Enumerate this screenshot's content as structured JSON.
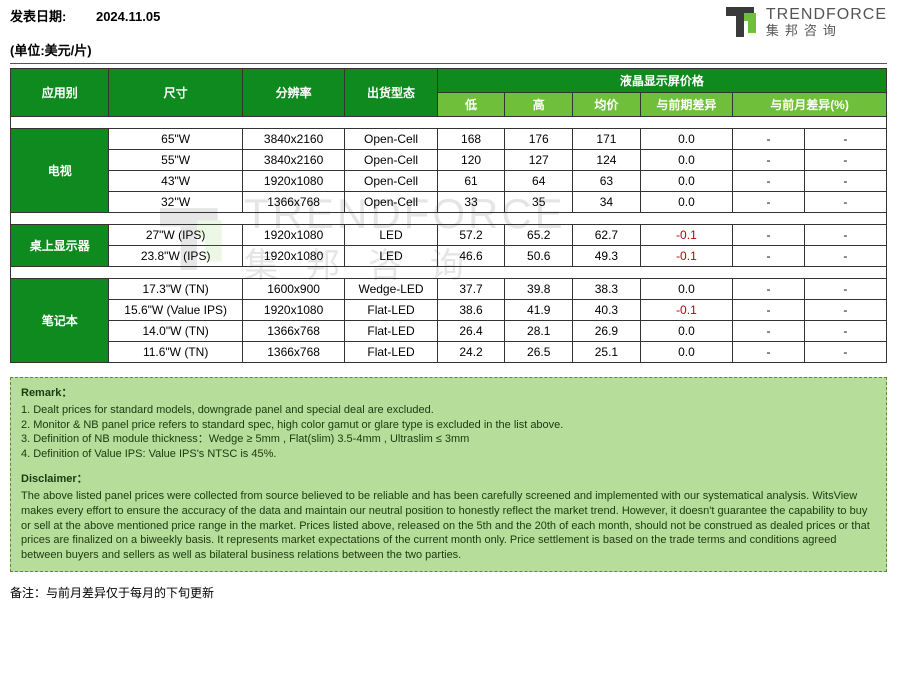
{
  "header": {
    "date_label": "发表日期:",
    "date_value": "2024.11.05",
    "unit_line": "(单位:美元/片)",
    "logo_en": "TRENDFORCE",
    "logo_cn": "集邦咨询"
  },
  "colors": {
    "header_green": "#0f8a1f",
    "sub_green": "#6fbf3a",
    "remark_bg": "#b7dd9a",
    "remark_border": "#5a8a3a",
    "negative": "#c00000",
    "border": "#333333"
  },
  "columns": {
    "app": "应用别",
    "size": "尺寸",
    "res": "分辨率",
    "ship": "出货型态",
    "price_group": "液晶显示屏价格",
    "low": "低",
    "high": "高",
    "avg": "均价",
    "diff_prev": "与前期差异",
    "diff_month": "与前月差异(%)"
  },
  "sections": [
    {
      "category": "电视",
      "rows": [
        {
          "size": "65\"W",
          "res": "3840x2160",
          "ship": "Open-Cell",
          "low": "168",
          "high": "176",
          "avg": "171",
          "d1": "0.0",
          "d1_neg": false,
          "d2a": "-",
          "d2b": "-"
        },
        {
          "size": "55\"W",
          "res": "3840x2160",
          "ship": "Open-Cell",
          "low": "120",
          "high": "127",
          "avg": "124",
          "d1": "0.0",
          "d1_neg": false,
          "d2a": "-",
          "d2b": "-"
        },
        {
          "size": "43\"W",
          "res": "1920x1080",
          "ship": "Open-Cell",
          "low": "61",
          "high": "64",
          "avg": "63",
          "d1": "0.0",
          "d1_neg": false,
          "d2a": "-",
          "d2b": "-"
        },
        {
          "size": "32''W",
          "res": "1366x768",
          "ship": "Open-Cell",
          "low": "33",
          "high": "35",
          "avg": "34",
          "d1": "0.0",
          "d1_neg": false,
          "d2a": "-",
          "d2b": "-"
        }
      ]
    },
    {
      "category": "桌上显示器",
      "rows": [
        {
          "size": "27\"W (IPS)",
          "res": "1920x1080",
          "ship": "LED",
          "low": "57.2",
          "high": "65.2",
          "avg": "62.7",
          "d1": "-0.1",
          "d1_neg": true,
          "d2a": "-",
          "d2b": "-"
        },
        {
          "size": "23.8\"W (IPS)",
          "res": "1920x1080",
          "ship": "LED",
          "low": "46.6",
          "high": "50.6",
          "avg": "49.3",
          "d1": "-0.1",
          "d1_neg": true,
          "d2a": "-",
          "d2b": "-"
        }
      ]
    },
    {
      "category": "笔记本",
      "rows": [
        {
          "size": "17.3\"W (TN)",
          "res": "1600x900",
          "ship": "Wedge-LED",
          "low": "37.7",
          "high": "39.8",
          "avg": "38.3",
          "d1": "0.0",
          "d1_neg": false,
          "d2a": "-",
          "d2b": "-"
        },
        {
          "size": "15.6\"W (Value IPS)",
          "res": "1920x1080",
          "ship": "Flat-LED",
          "low": "38.6",
          "high": "41.9",
          "avg": "40.3",
          "d1": "-0.1",
          "d1_neg": true,
          "d2a": "-",
          "d2b": "-"
        },
        {
          "size": "14.0\"W (TN)",
          "res": "1366x768",
          "ship": "Flat-LED",
          "low": "26.4",
          "high": "28.1",
          "avg": "26.9",
          "d1": "0.0",
          "d1_neg": false,
          "d2a": "-",
          "d2b": "-"
        },
        {
          "size": "11.6\"W (TN)",
          "res": "1366x768",
          "ship": "Flat-LED",
          "low": "24.2",
          "high": "26.5",
          "avg": "25.1",
          "d1": "0.0",
          "d1_neg": false,
          "d2a": "-",
          "d2b": "-"
        }
      ]
    }
  ],
  "remark": {
    "title": "Remark：",
    "lines": [
      "1. Dealt prices for standard models, downgrade panel and special deal are excluded.",
      "2. Monitor & NB panel price refers to standard spec, high color gamut or glare type is excluded in the list above.",
      "3. Definition of NB module thickness：Wedge ≥ 5mm , Flat(slim) 3.5-4mm , Ultraslim ≤ 3mm",
      "4. Definition of Value IPS: Value IPS's NTSC is 45%."
    ],
    "disclaimer_title": "Disclaimer：",
    "disclaimer": "The above listed panel prices were collected from source believed to be reliable and has been carefully screened and implemented with our systematical analysis. WitsView makes every effort to ensure the accuracy of the data and maintain our neutral position to honestly reflect the market trend. However, it doesn't guarantee the capability to buy or sell at the above mentioned price range in the market. Prices listed above, released on the 5th and the 20th of each month, should not be construed as dealed prices or that prices are finalized on a biweekly basis. It represents market expectations of the current month only. Price settlement is based on the trade terms and conditions agreed between buyers and sellers as well as bilateral business relations between the two parties."
  },
  "footnote": "备注：与前月差异仅于每月的下旬更新"
}
